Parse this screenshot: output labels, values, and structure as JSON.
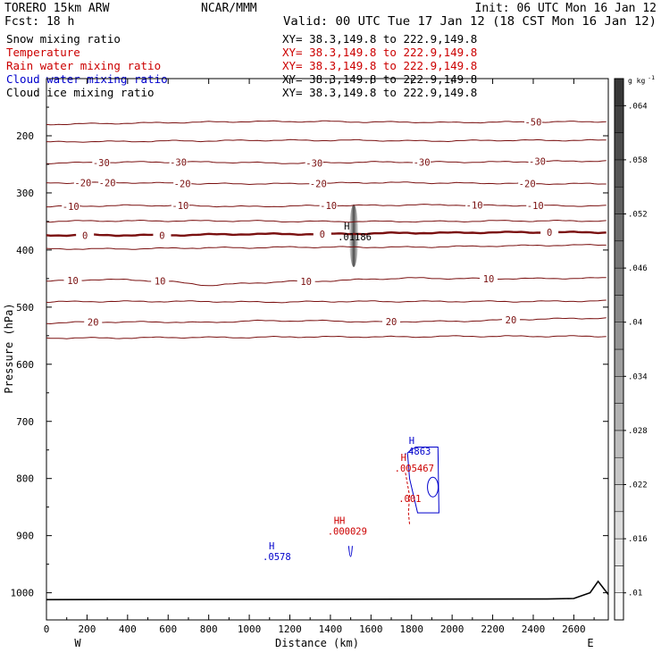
{
  "header": {
    "model": "TORERO  15km ARW",
    "org": "NCAR/MMM",
    "init": "Init: 06 UTC Mon 16 Jan 12",
    "fcst": "Fcst:   18 h",
    "valid": "Valid: 00 UTC Tue 17 Jan 12 (18 CST Mon 16 Jan 12)"
  },
  "fields": [
    {
      "label": "Snow mixing ratio",
      "xy": "XY=  38.3,149.8 to 222.9,149.8",
      "color": "#000000",
      "xy_color": "#000000"
    },
    {
      "label": "Temperature",
      "xy": "XY=  38.3,149.8 to 222.9,149.8",
      "color": "#cc0000",
      "xy_color": "#cc0000"
    },
    {
      "label": "Rain water mixing ratio",
      "xy": "XY=  38.3,149.8 to 222.9,149.8",
      "color": "#cc0000",
      "xy_color": "#cc0000"
    },
    {
      "label": "Cloud water mixing ratio",
      "xy": "XY=  38.3,149.8 to 222.9,149.8",
      "color": "#0000cc",
      "xy_color": "#000000"
    },
    {
      "label": "Cloud ice mixing ratio",
      "xy": "XY=  38.3,149.8 to 222.9,149.8",
      "color": "#000000",
      "xy_color": "#000000"
    }
  ],
  "chart_data": {
    "type": "cross-section contour",
    "xlabel": "Distance (km)",
    "ylabel": "Pressure (hPa)",
    "xlim": [
      0,
      2770
    ],
    "ylim_hpa": [
      1050,
      100
    ],
    "x_ticks": [
      0,
      200,
      400,
      600,
      800,
      1000,
      1200,
      1400,
      1600,
      1800,
      2000,
      2200,
      2400,
      2600
    ],
    "y_ticks": [
      200,
      300,
      400,
      500,
      600,
      700,
      800,
      900,
      1000
    ],
    "endpoint_left": "W",
    "endpoint_right": "E",
    "colorbar": {
      "units": "g kg",
      "units_sup": "-1",
      "ticks": [
        ".064",
        ".058",
        ".052",
        ".046",
        ".04",
        ".034",
        ".028",
        ".022",
        ".016",
        ".01"
      ],
      "tick_values": [
        0.064,
        0.058,
        0.052,
        0.046,
        0.04,
        0.034,
        0.028,
        0.022,
        0.016,
        0.01
      ],
      "min": 0.007,
      "max": 0.067
    },
    "temperature_isotherms": [
      {
        "level": -50,
        "p": [
          180,
          179,
          178,
          177,
          176,
          175,
          175,
          175,
          176,
          176,
          177,
          176,
          176,
          175
        ],
        "labels": [
          [
            2400,
            "-50"
          ]
        ]
      },
      {
        "level": -40,
        "p": [
          211,
          210,
          210,
          209,
          209,
          208,
          208,
          208,
          208,
          209,
          209,
          208,
          208,
          208
        ],
        "labels": []
      },
      {
        "level": -30,
        "p": [
          248,
          247,
          246,
          246,
          246,
          247,
          248,
          247,
          246,
          246,
          246,
          246,
          245,
          244
        ],
        "labels": [
          [
            270,
            "-30"
          ],
          [
            650,
            "-30"
          ],
          [
            1320,
            "-30"
          ],
          [
            1850,
            "-30"
          ],
          [
            2420,
            "-30"
          ]
        ]
      },
      {
        "level": -20,
        "p": [
          283,
          282,
          282,
          283,
          284,
          284,
          284,
          283,
          282,
          282,
          283,
          283,
          284,
          284
        ],
        "labels": [
          [
            180,
            "-20"
          ],
          [
            300,
            "-20"
          ],
          [
            670,
            "-20"
          ],
          [
            1340,
            "-20"
          ],
          [
            2370,
            "-20"
          ]
        ]
      },
      {
        "level": -10,
        "p": [
          324,
          323,
          322,
          322,
          323,
          324,
          323,
          322,
          322,
          321,
          321,
          322,
          322,
          323
        ],
        "labels": [
          [
            120,
            "-10"
          ],
          [
            660,
            "-10"
          ],
          [
            1390,
            "-10"
          ],
          [
            2110,
            "-10"
          ],
          [
            2410,
            "-10"
          ]
        ]
      },
      {
        "level": -5,
        "p": [
          350,
          349,
          349,
          349,
          349,
          349,
          350,
          350,
          350,
          350,
          350,
          349,
          349,
          349
        ],
        "labels": []
      },
      {
        "level": 0,
        "p": [
          374,
          374,
          374,
          374,
          373,
          372,
          372,
          372,
          371,
          370,
          370,
          369,
          369,
          369
        ],
        "labels": [
          [
            190,
            "0"
          ],
          [
            570,
            "0"
          ],
          [
            1360,
            "0"
          ],
          [
            2480,
            "0"
          ]
        ],
        "thick": true
      },
      {
        "level": 5,
        "p": [
          398,
          398,
          398,
          397,
          396,
          396,
          395,
          395,
          395,
          395,
          394,
          393,
          392,
          391
        ],
        "labels": []
      },
      {
        "level": 10,
        "p": [
          455,
          452,
          452,
          455,
          462,
          458,
          455,
          454,
          451,
          449,
          450,
          450,
          450,
          449
        ],
        "labels": [
          [
            130,
            "10"
          ],
          [
            560,
            "10"
          ],
          [
            1280,
            "10"
          ],
          [
            2180,
            "10"
          ]
        ]
      },
      {
        "level": 15,
        "p": [
          491,
          490,
          490,
          490,
          490,
          491,
          491,
          490,
          490,
          490,
          490,
          490,
          490,
          489
        ],
        "labels": []
      },
      {
        "level": 20,
        "p": [
          528,
          526,
          526,
          526,
          527,
          524,
          524,
          524,
          526,
          525,
          525,
          523,
          521,
          519
        ],
        "labels": [
          [
            230,
            "20"
          ],
          [
            1700,
            "20"
          ],
          [
            2290,
            "20"
          ]
        ]
      },
      {
        "level": 25,
        "p": [
          554,
          554,
          554,
          553,
          553,
          553,
          552,
          552,
          552,
          552,
          551,
          551,
          551,
          551
        ],
        "labels": []
      }
    ],
    "annotations": [
      {
        "field": "snow",
        "x": 1480,
        "p": 380,
        "marker": "H",
        "value": ".01186",
        "color": "#000000"
      },
      {
        "field": "cloud",
        "x": 1800,
        "p": 755,
        "marker": "H",
        "value": ".4863",
        "color": "#0000cc"
      },
      {
        "field": "rain",
        "x": 1760,
        "p": 785,
        "marker": "H",
        "value": ".005467",
        "color": "#cc0000"
      },
      {
        "field": "rain",
        "x": 1780,
        "p": 838,
        "marker": "",
        "value": ".001",
        "color": "#cc0000"
      },
      {
        "field": "rain",
        "x": 1430,
        "p": 895,
        "marker": "HH",
        "value": ".000029",
        "color": "#cc0000"
      },
      {
        "field": "cloud",
        "x": 1110,
        "p": 940,
        "marker": "H",
        "value": ".0578",
        "color": "#0000cc"
      }
    ]
  }
}
